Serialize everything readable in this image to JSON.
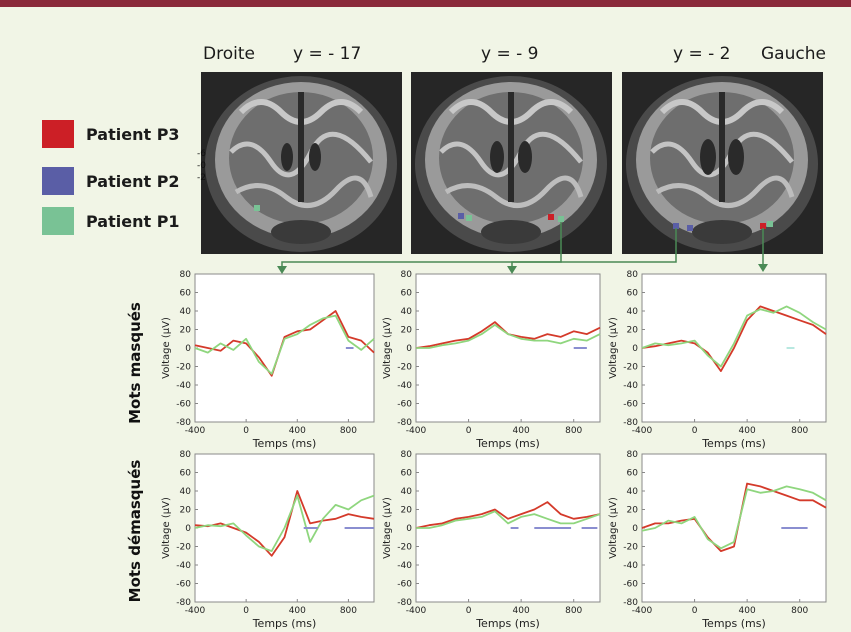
{
  "header": {
    "left_label": "Droite",
    "right_label": "Gauche",
    "slices": [
      "y = - 17",
      "y = - 9",
      "y = - 2"
    ]
  },
  "legend": [
    {
      "label": "Patient P3",
      "color": "#cc1f26"
    },
    {
      "label": "Patient P2",
      "color": "#5a5ea6"
    },
    {
      "label": "Patient P1",
      "color": "#79c295"
    }
  ],
  "slice_ticks": [
    "-6",
    "-0",
    "-2"
  ],
  "row_labels": [
    "Mots masqués",
    "Mots démasqués"
  ],
  "colors": {
    "connector": "#4a8a55",
    "bar": "#8a8ed0",
    "top_bar": "#8a2a3a"
  },
  "chart_data": [
    {
      "type": "line",
      "row": "Mots masqués",
      "col": 1,
      "xlabel": "Temps (ms)",
      "ylabel": "Voltage (µV)",
      "xlim": [
        -400,
        1000
      ],
      "ylim": [
        -80,
        80
      ],
      "xticks": [
        -400,
        0,
        400,
        800
      ],
      "yticks": [
        -80,
        -60,
        -40,
        -20,
        0,
        20,
        40,
        60,
        80
      ],
      "series": [
        {
          "color": "#d43a2a",
          "x": [
            -400,
            -300,
            -200,
            -100,
            0,
            100,
            200,
            300,
            400,
            500,
            600,
            700,
            800,
            900,
            1000
          ],
          "y": [
            3,
            0,
            -3,
            8,
            5,
            -10,
            -30,
            12,
            18,
            20,
            30,
            40,
            12,
            8,
            -5
          ]
        },
        {
          "color": "#8fd67e",
          "x": [
            -400,
            -300,
            -200,
            -100,
            0,
            100,
            200,
            300,
            400,
            500,
            600,
            700,
            800,
            900,
            1000
          ],
          "y": [
            0,
            -5,
            5,
            -2,
            10,
            -15,
            -28,
            10,
            15,
            25,
            32,
            35,
            8,
            -2,
            10
          ]
        }
      ],
      "sig_bars": [
        {
          "start": 780,
          "end": 840,
          "color": "#8a8ed0"
        }
      ]
    },
    {
      "type": "line",
      "row": "Mots masqués",
      "col": 2,
      "xlabel": "Temps (ms)",
      "ylabel": "Voltage (µV)",
      "xlim": [
        -400,
        1000
      ],
      "ylim": [
        -80,
        80
      ],
      "xticks": [
        -400,
        0,
        400,
        800
      ],
      "yticks": [
        -80,
        -60,
        -40,
        -20,
        0,
        20,
        40,
        60,
        80
      ],
      "series": [
        {
          "color": "#d43a2a",
          "x": [
            -400,
            -300,
            -200,
            -100,
            0,
            100,
            200,
            300,
            400,
            500,
            600,
            700,
            800,
            900,
            1000
          ],
          "y": [
            0,
            2,
            5,
            8,
            10,
            18,
            28,
            15,
            12,
            10,
            15,
            12,
            18,
            15,
            22
          ]
        },
        {
          "color": "#8fd67e",
          "x": [
            -400,
            -300,
            -200,
            -100,
            0,
            100,
            200,
            300,
            400,
            500,
            600,
            700,
            800,
            900,
            1000
          ],
          "y": [
            0,
            0,
            3,
            5,
            8,
            15,
            25,
            15,
            10,
            8,
            8,
            5,
            10,
            8,
            15
          ]
        }
      ],
      "sig_bars": [
        {
          "start": 800,
          "end": 900,
          "color": "#8a8ed0"
        }
      ]
    },
    {
      "type": "line",
      "row": "Mots masqués",
      "col": 3,
      "xlabel": "Temps (ms)",
      "ylabel": "Voltage (µV)",
      "xlim": [
        -400,
        1000
      ],
      "ylim": [
        -80,
        80
      ],
      "xticks": [
        -400,
        0,
        400,
        800
      ],
      "yticks": [
        -80,
        -60,
        -40,
        -20,
        0,
        20,
        40,
        60,
        80
      ],
      "series": [
        {
          "color": "#d43a2a",
          "x": [
            -400,
            -300,
            -200,
            -100,
            0,
            100,
            200,
            300,
            400,
            500,
            600,
            700,
            800,
            900,
            1000
          ],
          "y": [
            0,
            2,
            5,
            8,
            5,
            -5,
            -25,
            0,
            30,
            45,
            40,
            35,
            30,
            25,
            15
          ]
        },
        {
          "color": "#8fd67e",
          "x": [
            -400,
            -300,
            -200,
            -100,
            0,
            100,
            200,
            300,
            400,
            500,
            600,
            700,
            800,
            900,
            1000
          ],
          "y": [
            0,
            5,
            3,
            5,
            8,
            -8,
            -20,
            5,
            35,
            42,
            38,
            45,
            38,
            28,
            20
          ]
        }
      ],
      "sig_bars": [
        {
          "start": 700,
          "end": 760,
          "color": "#b8e8e0"
        }
      ]
    },
    {
      "type": "line",
      "row": "Mots démasqués",
      "col": 1,
      "xlabel": "Temps (ms)",
      "ylabel": "Voltage (µV)",
      "xlim": [
        -400,
        1000
      ],
      "ylim": [
        -80,
        80
      ],
      "xticks": [
        -400,
        0,
        400,
        800
      ],
      "yticks": [
        -80,
        -60,
        -40,
        -20,
        0,
        20,
        40,
        60,
        80
      ],
      "series": [
        {
          "color": "#d43a2a",
          "x": [
            -400,
            -300,
            -200,
            -100,
            0,
            100,
            200,
            300,
            400,
            500,
            600,
            700,
            800,
            900,
            1000
          ],
          "y": [
            3,
            2,
            5,
            0,
            -5,
            -15,
            -30,
            -10,
            40,
            5,
            8,
            10,
            15,
            12,
            10
          ]
        },
        {
          "color": "#8fd67e",
          "x": [
            -400,
            -300,
            -200,
            -100,
            0,
            100,
            200,
            300,
            400,
            500,
            600,
            700,
            800,
            900,
            1000
          ],
          "y": [
            0,
            3,
            2,
            5,
            -8,
            -20,
            -25,
            0,
            35,
            -15,
            10,
            25,
            20,
            30,
            35
          ]
        }
      ],
      "sig_bars": [
        {
          "start": 450,
          "end": 560,
          "color": "#8a8ed0"
        },
        {
          "start": 770,
          "end": 1000,
          "color": "#8a8ed0"
        }
      ]
    },
    {
      "type": "line",
      "row": "Mots démasqués",
      "col": 2,
      "xlabel": "Temps (ms)",
      "ylabel": "Voltage (µV)",
      "xlim": [
        -400,
        1000
      ],
      "ylim": [
        -80,
        80
      ],
      "xticks": [
        -400,
        0,
        400,
        800
      ],
      "yticks": [
        -80,
        -60,
        -40,
        -20,
        0,
        20,
        40,
        60,
        80
      ],
      "series": [
        {
          "color": "#d43a2a",
          "x": [
            -400,
            -300,
            -200,
            -100,
            0,
            100,
            200,
            300,
            400,
            500,
            600,
            700,
            800,
            900,
            1000
          ],
          "y": [
            0,
            3,
            5,
            10,
            12,
            15,
            20,
            10,
            15,
            20,
            28,
            15,
            10,
            12,
            15
          ]
        },
        {
          "color": "#8fd67e",
          "x": [
            -400,
            -300,
            -200,
            -100,
            0,
            100,
            200,
            300,
            400,
            500,
            600,
            700,
            800,
            900,
            1000
          ],
          "y": [
            0,
            0,
            3,
            8,
            10,
            12,
            18,
            5,
            12,
            15,
            10,
            5,
            5,
            10,
            15
          ]
        }
      ],
      "sig_bars": [
        {
          "start": 320,
          "end": 380,
          "color": "#8a8ed0"
        },
        {
          "start": 500,
          "end": 780,
          "color": "#8a8ed0"
        },
        {
          "start": 860,
          "end": 980,
          "color": "#8a8ed0"
        }
      ]
    },
    {
      "type": "line",
      "row": "Mots démasqués",
      "col": 3,
      "xlabel": "Temps (ms)",
      "ylabel": "Voltage (µV)",
      "xlim": [
        -400,
        1000
      ],
      "ylim": [
        -80,
        80
      ],
      "xticks": [
        -400,
        0,
        400,
        800
      ],
      "yticks": [
        -80,
        -60,
        -40,
        -20,
        0,
        20,
        40,
        60,
        80
      ],
      "series": [
        {
          "color": "#d43a2a",
          "x": [
            -400,
            -300,
            -200,
            -100,
            0,
            100,
            200,
            300,
            400,
            500,
            600,
            700,
            800,
            900,
            1000
          ],
          "y": [
            0,
            5,
            5,
            8,
            10,
            -10,
            -25,
            -20,
            48,
            45,
            40,
            35,
            30,
            30,
            22
          ]
        },
        {
          "color": "#8fd67e",
          "x": [
            -400,
            -300,
            -200,
            -100,
            0,
            100,
            200,
            300,
            400,
            500,
            600,
            700,
            800,
            900,
            1000
          ],
          "y": [
            -3,
            0,
            8,
            5,
            12,
            -12,
            -22,
            -15,
            42,
            38,
            40,
            45,
            42,
            38,
            30
          ]
        }
      ],
      "sig_bars": [
        {
          "start": 660,
          "end": 860,
          "color": "#8a8ed0"
        }
      ]
    }
  ]
}
